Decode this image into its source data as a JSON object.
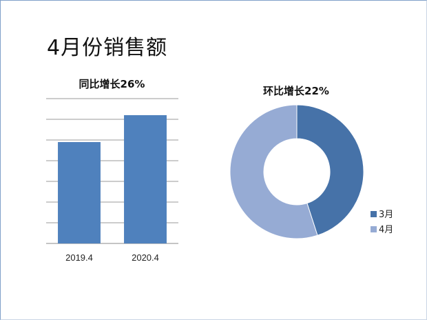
{
  "slide": {
    "title": "4月份销售额"
  },
  "chart_data": [
    {
      "type": "bar",
      "title": "同比增长26%",
      "categories": [
        "2019.4",
        "2020.4"
      ],
      "values": [
        49,
        62
      ],
      "ylim": [
        0,
        70
      ],
      "grid": true,
      "colors": [
        "#4f81bd"
      ]
    },
    {
      "type": "pie",
      "variant": "donut",
      "title": "环比增长22%",
      "labels": [
        "3月",
        "4月"
      ],
      "values": [
        45,
        55
      ],
      "colors": [
        "#4672a8",
        "#96abd4"
      ],
      "legend": "right"
    }
  ]
}
